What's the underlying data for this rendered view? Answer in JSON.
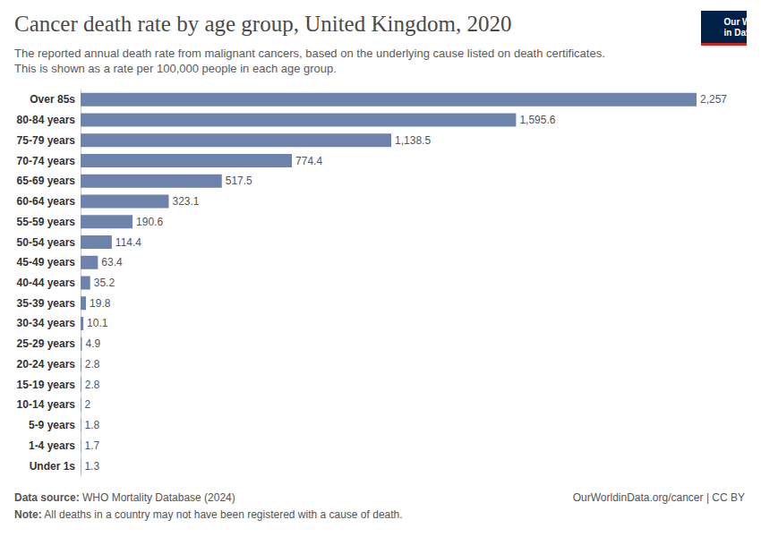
{
  "chart_data": {
    "type": "bar",
    "orientation": "horizontal",
    "title": "Cancer death rate by age group, United Kingdom, 2020",
    "subtitle": "The reported annual death rate from malignant cancers, based on the underlying cause listed on death certificates. This is shown as a rate per 100,000 people in each age group.",
    "categories": [
      "Over 85s",
      "80-84 years",
      "75-79 years",
      "70-74 years",
      "65-69 years",
      "60-64 years",
      "55-59 years",
      "50-54 years",
      "45-49 years",
      "40-44 years",
      "35-39 years",
      "30-34 years",
      "25-29 years",
      "20-24 years",
      "15-19 years",
      "10-14 years",
      "5-9 years",
      "1-4 years",
      "Under 1s"
    ],
    "values": [
      2257,
      1595.6,
      1138.5,
      774.4,
      517.5,
      323.1,
      190.6,
      114.4,
      63.4,
      35.2,
      19.8,
      10.1,
      4.9,
      2.8,
      2.8,
      2,
      1.8,
      1.7,
      1.3
    ],
    "value_labels": [
      "2,257",
      "1,595.6",
      "1,138.5",
      "774.4",
      "517.5",
      "323.1",
      "190.6",
      "114.4",
      "63.4",
      "35.2",
      "19.8",
      "10.1",
      "4.9",
      "2.8",
      "2.8",
      "2",
      "1.8",
      "1.7",
      "1.3"
    ],
    "color": "#6d83ab",
    "xlim": [
      0,
      2257
    ],
    "grid": false,
    "data_labels": true,
    "tick_labels": "y",
    "source": "Data source: WHO Mortality Database (2024)",
    "note": "Note: All deaths in a country may not have been registered with a cause of death.",
    "url": "OurWorldinData.org/cancer | CC BY",
    "logo": "Our World\nin Data"
  }
}
